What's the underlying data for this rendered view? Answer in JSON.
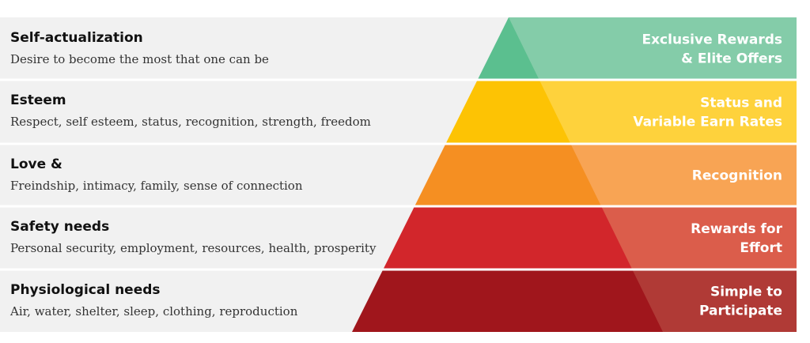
{
  "tiers": [
    {
      "title": "Self-actualization",
      "description": "Desire to become the most that one can be",
      "reward": [
        "Exclusive Rewards",
        "& Elite Offers"
      ],
      "color": "#5bbf8f",
      "panel_color": "#84cca9"
    },
    {
      "title": "Esteem",
      "description": "Respect, self esteem, status, recognition, strength, freedom",
      "reward": [
        "Status and",
        "Variable Earn Rates"
      ],
      "color": "#fdc304",
      "panel_color": "#fed23c"
    },
    {
      "title": "Love &",
      "description": "Freindship, intimacy, family, sense of connection",
      "reward": [
        "Recognition"
      ],
      "color": "#f58f22",
      "panel_color": "#f8a454"
    },
    {
      "title": "Safety needs",
      "description": "Personal security, employment, resources, health, prosperity",
      "reward": [
        "Rewards for",
        "Effort"
      ],
      "color": "#d2262b",
      "panel_color": "#db5d4b"
    },
    {
      "title": "Physiological needs",
      "description": "Air, water, shelter, sleep, clothing, reproduction",
      "reward": [
        "Simple to",
        "Participate"
      ],
      "color": "#a0161c",
      "panel_color": "#b03a36"
    }
  ]
}
